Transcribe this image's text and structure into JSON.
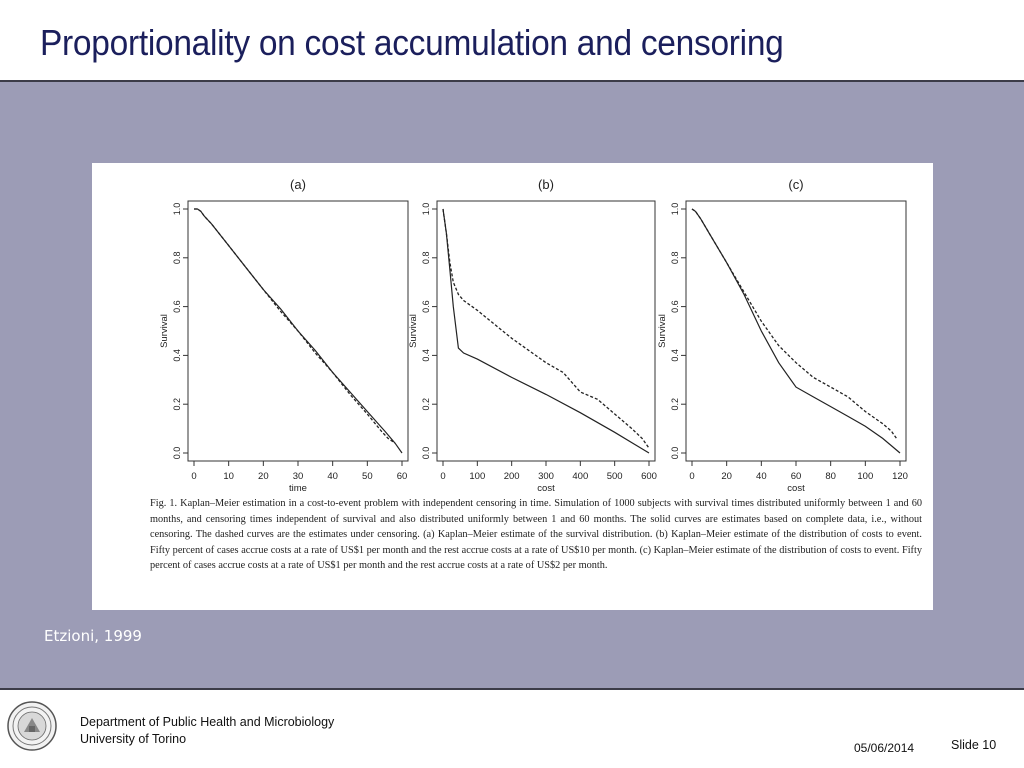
{
  "slide": {
    "title": "Proportionality on cost accumulation and censoring",
    "citation": "Etzioni, 1999",
    "footer": {
      "department": "Department of Public Health and Microbiology",
      "university": "University of Torino",
      "date": "05/06/2014",
      "slide_number": "Slide 10"
    }
  },
  "figure": {
    "caption": "Fig. 1. Kaplan–Meier estimation in a cost-to-event problem with independent censoring in time. Simulation of 1000 subjects with survival times distributed uniformly between 1 and 60 months, and censoring times independent of survival and also distributed uniformly between 1 and 60 months. The solid curves are estimates based on complete data, i.e., without censoring. The dashed curves are the estimates under censoring. (a) Kaplan–Meier estimate of the survival distribution. (b) Kaplan–Meier estimate of the distribution of costs to event. Fifty percent of cases accrue costs at a rate of US$1 per month and the rest accrue costs at a rate of US$10 per month. (c) Kaplan–Meier estimate of the distribution of costs to event. Fifty percent of cases accrue costs at a rate of US$1 per month and the rest accrue costs at a rate of US$2 per month.",
    "colors": {
      "panel_bg": "#9c9cb6",
      "title": "#1b1f5c",
      "line": "#222222"
    }
  },
  "chart_data": [
    {
      "type": "line",
      "title": "(a)",
      "xlabel": "time",
      "ylabel": "Survival",
      "xlim": [
        0,
        60
      ],
      "ylim": [
        0,
        1
      ],
      "xticks": [
        "0",
        "10",
        "20",
        "30",
        "40",
        "50",
        "60"
      ],
      "yticks": [
        "0.0",
        "0.2",
        "0.4",
        "0.6",
        "0.8",
        "1.0"
      ],
      "series": [
        {
          "style": "solid",
          "x": [
            0,
            1,
            2,
            3,
            5,
            10,
            15,
            20,
            25,
            30,
            35,
            40,
            45,
            50,
            55,
            58,
            60
          ],
          "y": [
            1.0,
            1.0,
            0.99,
            0.97,
            0.94,
            0.85,
            0.76,
            0.67,
            0.59,
            0.5,
            0.42,
            0.33,
            0.25,
            0.17,
            0.09,
            0.04,
            0.0
          ]
        },
        {
          "style": "dashed",
          "x": [
            0,
            1,
            2,
            3,
            5,
            10,
            15,
            20,
            25,
            30,
            35,
            40,
            45,
            50,
            54,
            56,
            58
          ],
          "y": [
            1.0,
            1.0,
            0.99,
            0.97,
            0.94,
            0.85,
            0.76,
            0.67,
            0.58,
            0.5,
            0.41,
            0.33,
            0.24,
            0.16,
            0.09,
            0.06,
            0.04
          ]
        }
      ]
    },
    {
      "type": "line",
      "title": "(b)",
      "xlabel": "cost",
      "ylabel": "Survival",
      "xlim": [
        0,
        600
      ],
      "ylim": [
        0,
        1
      ],
      "xticks": [
        "0",
        "100",
        "200",
        "300",
        "400",
        "500",
        "600"
      ],
      "yticks": [
        "0.0",
        "0.2",
        "0.4",
        "0.6",
        "0.8",
        "1.0"
      ],
      "series": [
        {
          "style": "solid",
          "x": [
            0,
            10,
            20,
            30,
            45,
            60,
            100,
            200,
            300,
            400,
            500,
            600
          ],
          "y": [
            1.0,
            0.9,
            0.75,
            0.6,
            0.43,
            0.41,
            0.385,
            0.31,
            0.24,
            0.165,
            0.085,
            0.0
          ]
        },
        {
          "style": "dashed",
          "x": [
            0,
            10,
            20,
            30,
            45,
            60,
            100,
            200,
            300,
            350,
            400,
            450,
            500,
            550,
            580,
            600
          ],
          "y": [
            1.0,
            0.9,
            0.78,
            0.7,
            0.65,
            0.625,
            0.585,
            0.47,
            0.37,
            0.33,
            0.25,
            0.22,
            0.16,
            0.1,
            0.06,
            0.02
          ]
        }
      ]
    },
    {
      "type": "line",
      "title": "(c)",
      "xlabel": "cost",
      "ylabel": "Survival",
      "xlim": [
        0,
        120
      ],
      "ylim": [
        0,
        1
      ],
      "xticks": [
        "0",
        "20",
        "40",
        "60",
        "80",
        "100",
        "120"
      ],
      "yticks": [
        "0.0",
        "0.2",
        "0.4",
        "0.6",
        "0.8",
        "1.0"
      ],
      "series": [
        {
          "style": "solid",
          "x": [
            0,
            2,
            5,
            10,
            20,
            30,
            40,
            50,
            60,
            70,
            80,
            90,
            100,
            110,
            120
          ],
          "y": [
            1.0,
            0.99,
            0.96,
            0.9,
            0.78,
            0.65,
            0.5,
            0.37,
            0.27,
            0.23,
            0.19,
            0.15,
            0.11,
            0.06,
            0.0
          ]
        },
        {
          "style": "dashed",
          "x": [
            0,
            2,
            5,
            10,
            20,
            30,
            40,
            50,
            60,
            70,
            80,
            90,
            100,
            110,
            115,
            118
          ],
          "y": [
            1.0,
            0.99,
            0.96,
            0.9,
            0.78,
            0.66,
            0.54,
            0.44,
            0.37,
            0.31,
            0.27,
            0.23,
            0.17,
            0.12,
            0.09,
            0.06
          ]
        }
      ]
    }
  ]
}
